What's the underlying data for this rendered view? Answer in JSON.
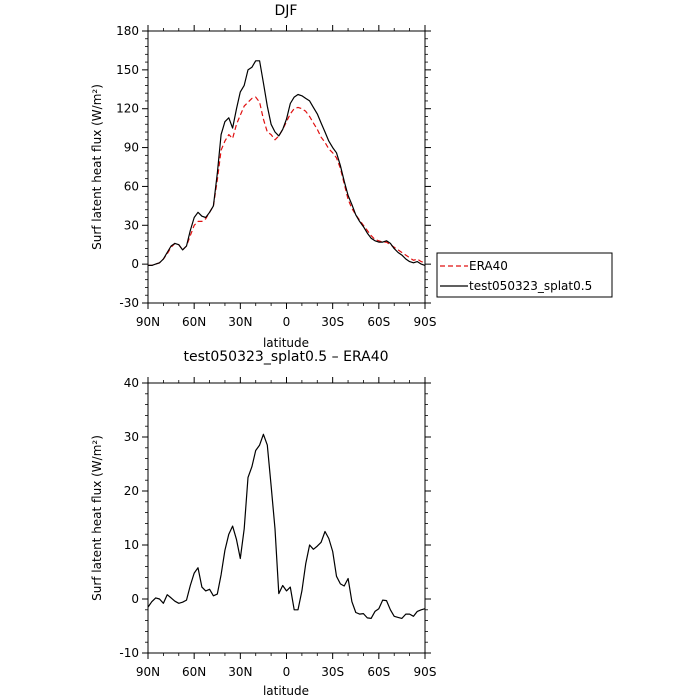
{
  "chart_data": [
    {
      "type": "line",
      "title": "DJF",
      "xlabel": "latitude",
      "ylabel": "Surf latent heat flux (W/m²)",
      "xlim": [
        90,
        -90
      ],
      "ylim": [
        -30,
        180
      ],
      "x_ticks": [
        {
          "value": 90,
          "label": "90N"
        },
        {
          "value": 60,
          "label": "60N"
        },
        {
          "value": 30,
          "label": "30N"
        },
        {
          "value": 0,
          "label": "0"
        },
        {
          "value": -30,
          "label": "30S"
        },
        {
          "value": -60,
          "label": "60S"
        },
        {
          "value": -90,
          "label": "90S"
        }
      ],
      "y_ticks": [
        -30,
        0,
        30,
        60,
        90,
        120,
        150,
        180
      ],
      "legend_position": "outside-right",
      "series": [
        {
          "name": "ERA40",
          "color": "#e01010",
          "dash": "dashed",
          "x": [
            90,
            87.5,
            85,
            82.5,
            80,
            77.5,
            75,
            72.5,
            70,
            67.5,
            65,
            62.5,
            60,
            57.5,
            55,
            52.5,
            50,
            47.5,
            45,
            42.5,
            40,
            37.5,
            35,
            32.5,
            30,
            27.5,
            25,
            22.5,
            20,
            17.5,
            15,
            12.5,
            10,
            7.5,
            5,
            2.5,
            0,
            -2.5,
            -5,
            -7.5,
            -10,
            -12.5,
            -15,
            -17.5,
            -20,
            -22.5,
            -25,
            -27.5,
            -30,
            -32.5,
            -35,
            -37.5,
            -40,
            -42.5,
            -45,
            -47.5,
            -50,
            -52.5,
            -55,
            -57.5,
            -60,
            -62.5,
            -65,
            -67.5,
            -70,
            -72.5,
            -75,
            -77.5,
            -80,
            -82.5,
            -85,
            -87.5,
            -90
          ],
          "y": [
            -1,
            -1,
            0,
            1,
            4,
            8,
            13,
            16,
            15,
            11,
            14,
            22,
            30,
            33,
            33,
            35,
            40,
            45,
            65,
            88,
            95,
            100,
            97,
            108,
            115,
            122,
            125,
            128,
            129,
            125,
            112,
            102,
            100,
            96,
            99,
            104,
            110,
            116,
            120,
            121,
            120,
            118,
            114,
            109,
            104,
            98,
            94,
            89,
            86,
            82,
            74,
            62,
            50,
            43,
            38,
            34,
            30,
            26,
            22,
            19,
            18,
            17,
            17,
            15,
            13,
            11,
            9,
            7,
            5,
            3,
            4,
            2,
            1
          ]
        },
        {
          "name": "test050323_splat0.5",
          "color": "#000000",
          "dash": "solid",
          "x": [
            90,
            87.5,
            85,
            82.5,
            80,
            77.5,
            75,
            72.5,
            70,
            67.5,
            65,
            62.5,
            60,
            57.5,
            55,
            52.5,
            50,
            47.5,
            45,
            42.5,
            40,
            37.5,
            35,
            32.5,
            30,
            27.5,
            25,
            22.5,
            20,
            17.5,
            15,
            12.5,
            10,
            7.5,
            5,
            2.5,
            0,
            -2.5,
            -5,
            -7.5,
            -10,
            -12.5,
            -15,
            -17.5,
            -20,
            -22.5,
            -25,
            -27.5,
            -30,
            -32.5,
            -35,
            -37.5,
            -40,
            -42.5,
            -45,
            -47.5,
            -50,
            -52.5,
            -55,
            -57.5,
            -60,
            -62.5,
            -65,
            -67.5,
            -70,
            -72.5,
            -75,
            -77.5,
            -80,
            -82.5,
            -85,
            -87.5,
            -90
          ],
          "y": [
            -1,
            -1,
            0,
            1,
            4,
            9,
            14,
            16,
            15,
            11,
            14,
            26,
            36,
            40,
            37,
            36,
            40,
            45,
            70,
            100,
            110,
            113,
            105,
            120,
            133,
            138,
            150,
            152,
            157,
            157,
            140,
            122,
            108,
            102,
            99,
            104,
            112,
            124,
            129,
            131,
            130,
            128,
            126,
            121,
            116,
            109,
            102,
            95,
            90,
            86,
            76,
            64,
            53,
            46,
            38,
            33,
            29,
            24,
            20,
            18,
            17,
            17,
            18,
            16,
            12,
            9,
            7,
            4,
            2,
            1,
            2,
            0,
            -1
          ]
        }
      ]
    },
    {
      "type": "line",
      "title": "test050323_splat0.5 – ERA40",
      "xlabel": "latitude",
      "ylabel": "Surf latent heat flux (W/m²)",
      "xlim": [
        90,
        -90
      ],
      "ylim": [
        -10,
        40
      ],
      "x_ticks": [
        {
          "value": 90,
          "label": "90N"
        },
        {
          "value": 60,
          "label": "60N"
        },
        {
          "value": 30,
          "label": "30N"
        },
        {
          "value": 0,
          "label": "0"
        },
        {
          "value": -30,
          "label": "30S"
        },
        {
          "value": -60,
          "label": "60S"
        },
        {
          "value": -90,
          "label": "90S"
        }
      ],
      "y_ticks": [
        -10,
        0,
        10,
        20,
        30,
        40
      ],
      "series": [
        {
          "color": "#000000",
          "dash": "solid",
          "x": [
            90,
            87.5,
            85,
            82.5,
            80,
            77.5,
            75,
            72.5,
            70,
            67.5,
            65,
            62.5,
            60,
            57.5,
            55,
            52.5,
            50,
            47.5,
            45,
            42.5,
            40,
            37.5,
            35,
            32.5,
            30,
            27.5,
            25,
            22.5,
            20,
            17.5,
            15,
            12.5,
            10,
            7.5,
            5,
            2.5,
            0,
            -2.5,
            -5,
            -7.5,
            -10,
            -12.5,
            -15,
            -17.5,
            -20,
            -22.5,
            -25,
            -27.5,
            -30,
            -32.5,
            -35,
            -37.5,
            -40,
            -42.5,
            -45,
            -47.5,
            -50,
            -52.5,
            -55,
            -57.5,
            -60,
            -62.5,
            -65,
            -67.5,
            -70,
            -72.5,
            -75,
            -77.5,
            -80,
            -82.5,
            -85,
            -87.5,
            -90
          ],
          "y": [
            -1.5,
            -0.5,
            0.2,
            0,
            -0.8,
            0.8,
            0.2,
            -0.4,
            -0.8,
            -0.6,
            -0.2,
            2.5,
            4.8,
            5.8,
            2.2,
            1.5,
            1.8,
            0.6,
            0.9,
            4.5,
            9,
            12,
            13.5,
            11,
            7.5,
            13,
            22.5,
            24.5,
            27.5,
            28.5,
            30.5,
            28.5,
            21,
            13,
            1,
            2.5,
            1.5,
            2.2,
            -2,
            -2,
            1.5,
            6.5,
            10,
            9.2,
            9.8,
            10.5,
            12.5,
            11.2,
            8.8,
            4.2,
            2.8,
            2.4,
            3.8,
            -0.5,
            -2.5,
            -2.8,
            -2.7,
            -3.5,
            -3.6,
            -2.3,
            -1.8,
            -0.2,
            -0.3,
            -2,
            -3.2,
            -3.4,
            -3.6,
            -2.8,
            -2.8,
            -3.2,
            -2.3,
            -2,
            -1.8
          ]
        }
      ]
    }
  ]
}
